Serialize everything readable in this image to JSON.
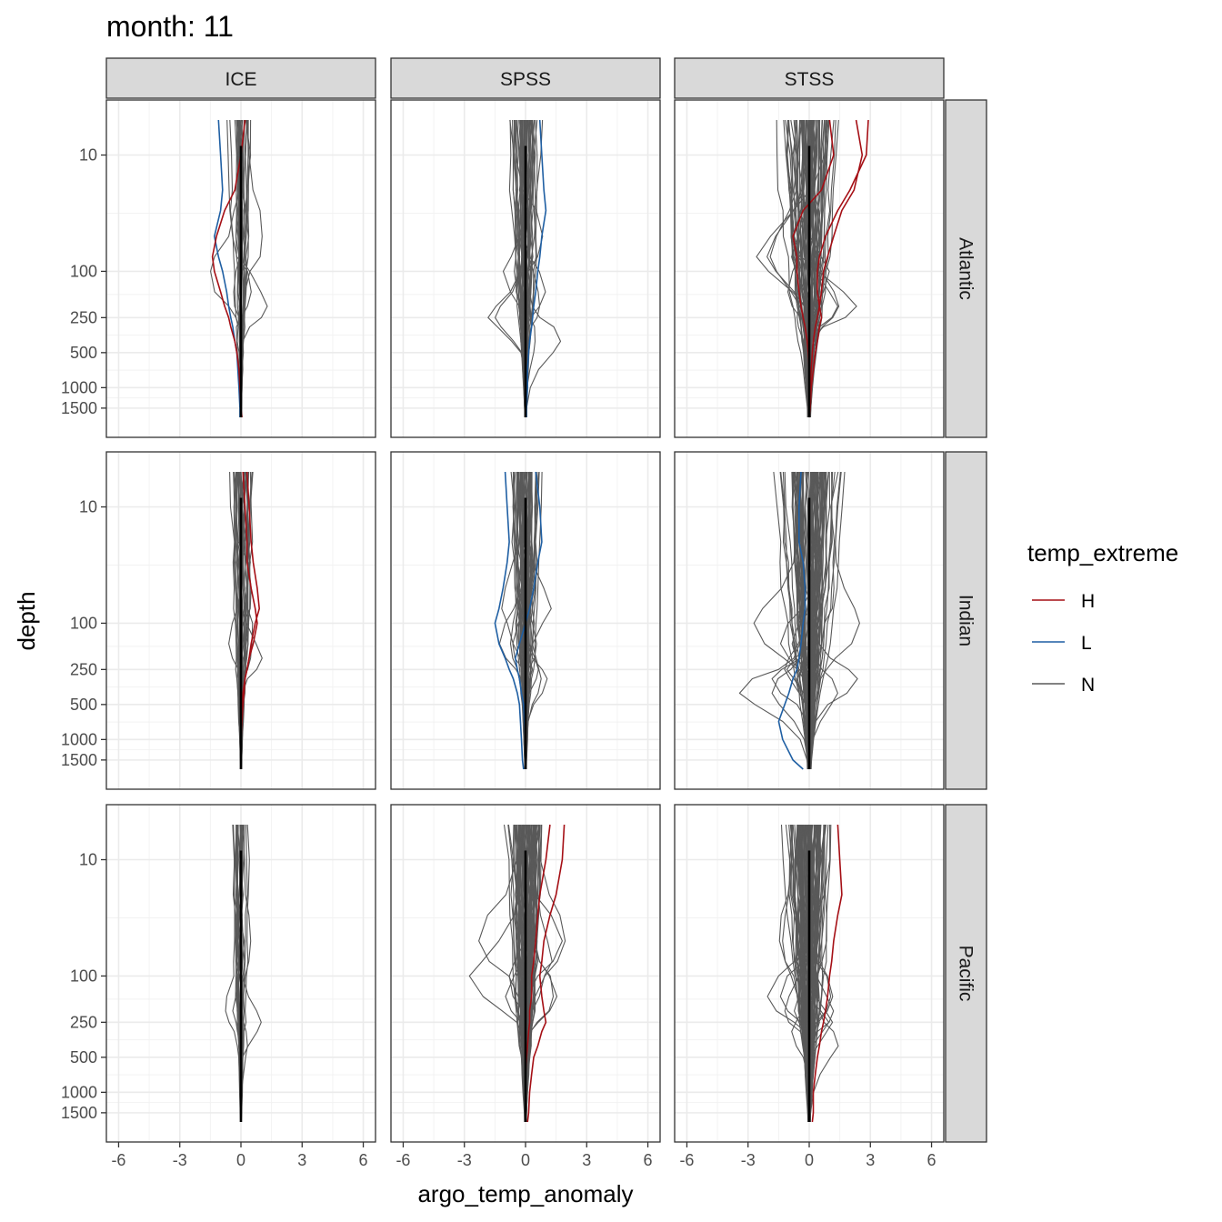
{
  "chart_data": {
    "type": "line",
    "title": "month: 11",
    "xlabel": "argo_temp_anomaly",
    "ylabel": "depth",
    "y_scale": "reversed-log",
    "xlim": [
      -6.6,
      6.6
    ],
    "ylim_depth": [
      1800,
      5
    ],
    "x_ticks": [
      -6,
      -3,
      0,
      3,
      6
    ],
    "y_ticks": [
      10,
      100,
      250,
      500,
      1000,
      1500
    ],
    "depth_levels": [
      5,
      10,
      20,
      30,
      50,
      75,
      100,
      150,
      200,
      250,
      300,
      400,
      500,
      700,
      1000,
      1500,
      1800
    ],
    "grid": true,
    "reference_line_x": 0,
    "columns": [
      "ICE",
      "SPSS",
      "STSS"
    ],
    "rows": [
      "Atlantic",
      "Indian",
      "Pacific"
    ],
    "legend": {
      "title": "temp_extreme",
      "position": "right",
      "items": [
        {
          "label": "H",
          "color": "#A50F15"
        },
        {
          "label": "L",
          "color": "#1F5FA3"
        },
        {
          "label": "N",
          "color": "#595959"
        }
      ]
    },
    "panels": [
      {
        "row": "Atlantic",
        "col": "ICE",
        "n_N": 28,
        "spread": 0.55,
        "H": [
          [
            [
              0.2,
              0.0,
              -0.3,
              -0.8,
              -1.2,
              -1.4,
              -1.3,
              -1.0,
              -0.8,
              -0.6,
              -0.5,
              -0.3,
              -0.2,
              -0.1,
              -0.05,
              0.0,
              0.05
            ]
          ]
        ],
        "L": [
          [
            [
              -1.1,
              -1.0,
              -0.9,
              -1.0,
              -1.3,
              -1.1,
              -0.9,
              -0.7,
              -0.6,
              -0.5,
              -0.4,
              -0.3,
              -0.2,
              -0.15,
              -0.1,
              -0.05,
              -0.05
            ]
          ]
        ]
      },
      {
        "row": "Atlantic",
        "col": "SPSS",
        "n_N": 50,
        "spread": 0.7,
        "H": [],
        "L": [
          [
            [
              0.7,
              0.8,
              0.9,
              1.0,
              0.8,
              0.7,
              0.6,
              0.5,
              0.4,
              0.35,
              0.3,
              0.2,
              0.15,
              0.1,
              0.1,
              0.05,
              0.05
            ]
          ]
        ]
      },
      {
        "row": "Atlantic",
        "col": "STSS",
        "n_N": 75,
        "spread": 1.25,
        "H": [
          [
            [
              2.9,
              2.8,
              2.0,
              1.4,
              0.8,
              0.5,
              0.4,
              0.4,
              0.5,
              0.6,
              0.5,
              0.4,
              0.3,
              0.2,
              0.1,
              0.05,
              0.0
            ]
          ],
          [
            [
              2.3,
              2.6,
              2.2,
              1.6,
              1.2,
              0.9,
              0.7,
              0.6,
              0.5,
              0.4,
              0.3,
              0.2,
              0.15,
              0.1,
              0.05,
              0.0,
              0.0
            ]
          ],
          [
            [
              1.0,
              1.2,
              0.6,
              -0.3,
              -0.8,
              -0.6,
              -0.6,
              -0.5,
              -0.4,
              -0.3,
              -0.2,
              -0.1,
              -0.05,
              0.0,
              0.0,
              0.0,
              0.0
            ]
          ]
        ],
        "L": []
      },
      {
        "row": "Indian",
        "col": "ICE",
        "n_N": 32,
        "spread": 0.6,
        "H": [
          [
            [
              0.3,
              0.4,
              0.5,
              0.6,
              0.8,
              0.9,
              0.7,
              0.5,
              0.4,
              0.3,
              0.2,
              0.15,
              0.1,
              0.05,
              0.0,
              0.0,
              0.0
            ]
          ],
          [
            [
              0.1,
              0.2,
              0.3,
              0.3,
              0.5,
              0.7,
              0.8,
              0.6,
              0.4,
              0.3,
              0.2,
              0.1,
              0.05,
              0.0,
              0.0,
              0.0,
              0.0
            ]
          ]
        ],
        "L": []
      },
      {
        "row": "Indian",
        "col": "SPSS",
        "n_N": 60,
        "spread": 0.65,
        "H": [],
        "L": [
          [
            [
              -1.0,
              -0.9,
              -0.8,
              -0.9,
              -1.1,
              -1.3,
              -1.5,
              -1.3,
              -1.0,
              -0.8,
              -0.6,
              -0.4,
              -0.3,
              -0.25,
              -0.2,
              -0.15,
              -0.1
            ]
          ],
          [
            [
              0.5,
              0.7,
              0.8,
              0.6,
              0.4,
              0.2,
              0.0,
              -0.3,
              -0.5,
              -0.4,
              -0.3,
              -0.2,
              -0.1,
              -0.05,
              0.0,
              0.0,
              0.0
            ]
          ]
        ]
      },
      {
        "row": "Indian",
        "col": "STSS",
        "n_N": 90,
        "spread": 1.3,
        "H": [],
        "L": [
          [
            [
              -0.4,
              -0.5,
              -0.5,
              -0.3,
              -0.2,
              -0.2,
              -0.3,
              -0.4,
              -0.5,
              -0.6,
              -0.8,
              -1.0,
              -1.2,
              -1.5,
              -1.3,
              -0.8,
              -0.3
            ]
          ]
        ]
      },
      {
        "row": "Pacific",
        "col": "ICE",
        "n_N": 22,
        "spread": 0.45,
        "H": [],
        "L": []
      },
      {
        "row": "Pacific",
        "col": "SPSS",
        "n_N": 75,
        "spread": 0.8,
        "H": [
          [
            [
              1.9,
              1.8,
              1.5,
              1.2,
              0.9,
              0.8,
              0.7,
              0.8,
              0.9,
              1.0,
              0.8,
              0.6,
              0.4,
              0.3,
              0.2,
              0.15,
              0.1
            ]
          ],
          [
            [
              1.2,
              1.0,
              0.7,
              0.6,
              0.5,
              0.4,
              0.3,
              0.3,
              0.2,
              0.2,
              0.15,
              0.1,
              0.05,
              0.0,
              0.0,
              0.0,
              0.0
            ]
          ]
        ],
        "L": []
      },
      {
        "row": "Pacific",
        "col": "STSS",
        "n_N": 110,
        "spread": 0.95,
        "H": [
          [
            [
              1.4,
              1.5,
              1.6,
              1.4,
              1.2,
              1.1,
              1.0,
              0.9,
              0.8,
              0.7,
              0.6,
              0.5,
              0.4,
              0.3,
              0.2,
              0.2,
              0.15
            ]
          ]
        ],
        "L": []
      }
    ]
  }
}
